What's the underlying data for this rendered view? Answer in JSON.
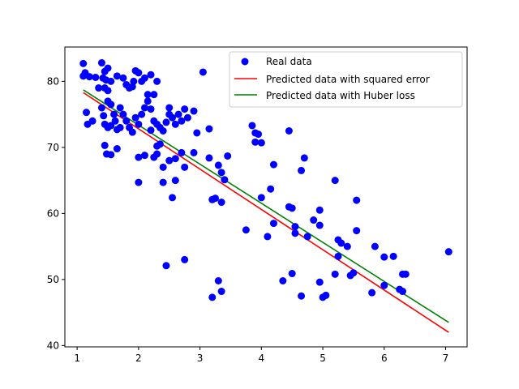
{
  "chart_data": {
    "type": "scatter",
    "title": "",
    "xlabel": "",
    "ylabel": "",
    "xlim": [
      0.8,
      7.35
    ],
    "ylim": [
      39.8,
      85.2
    ],
    "xticks": [
      1,
      2,
      3,
      4,
      5,
      6,
      7
    ],
    "yticks": [
      40,
      50,
      60,
      70,
      80
    ],
    "grid": false,
    "legend_position": "top-right",
    "series": [
      {
        "name": "Real data",
        "kind": "scatter",
        "color": "#0000ff",
        "points": [
          [
            1.1,
            82.7
          ],
          [
            1.13,
            81.3
          ],
          [
            1.1,
            80.8
          ],
          [
            1.2,
            80.7
          ],
          [
            1.3,
            80.6
          ],
          [
            1.4,
            82.8
          ],
          [
            1.45,
            81.5
          ],
          [
            1.5,
            82.0
          ],
          [
            1.42,
            80.5
          ],
          [
            1.47,
            80.2
          ],
          [
            1.45,
            79.0
          ],
          [
            1.5,
            78.6
          ],
          [
            1.35,
            79.0
          ],
          [
            1.65,
            80.8
          ],
          [
            1.55,
            80.0
          ],
          [
            1.75,
            80.5
          ],
          [
            1.8,
            79.5
          ],
          [
            1.85,
            79.0
          ],
          [
            1.9,
            79.2
          ],
          [
            1.95,
            81.6
          ],
          [
            2.0,
            81.3
          ],
          [
            1.92,
            80.0
          ],
          [
            2.05,
            80.0
          ],
          [
            2.1,
            80.5
          ],
          [
            2.2,
            81.0
          ],
          [
            2.3,
            80.0
          ],
          [
            2.15,
            78.0
          ],
          [
            2.25,
            78.0
          ],
          [
            3.05,
            81.4
          ],
          [
            1.15,
            75.3
          ],
          [
            1.17,
            73.5
          ],
          [
            1.25,
            74.0
          ],
          [
            1.4,
            76.0
          ],
          [
            1.43,
            74.8
          ],
          [
            1.45,
            73.5
          ],
          [
            1.5,
            73.0
          ],
          [
            1.5,
            77.0
          ],
          [
            1.55,
            76.5
          ],
          [
            1.6,
            75.0
          ],
          [
            1.62,
            74.0
          ],
          [
            1.65,
            72.7
          ],
          [
            1.55,
            73.3
          ],
          [
            1.7,
            76.0
          ],
          [
            1.75,
            75.0
          ],
          [
            1.8,
            74.0
          ],
          [
            1.85,
            73.0
          ],
          [
            1.9,
            72.3
          ],
          [
            1.95,
            74.5
          ],
          [
            2.0,
            73.5
          ],
          [
            2.05,
            75.0
          ],
          [
            2.1,
            76.0
          ],
          [
            2.15,
            77.0
          ],
          [
            2.2,
            75.8
          ],
          [
            2.25,
            74.0
          ],
          [
            2.3,
            73.5
          ],
          [
            2.35,
            73.0
          ],
          [
            2.4,
            72.5
          ],
          [
            2.45,
            73.8
          ],
          [
            2.5,
            75.0
          ],
          [
            2.55,
            74.5
          ],
          [
            2.6,
            73.5
          ],
          [
            2.65,
            75.0
          ],
          [
            2.7,
            74.0
          ],
          [
            2.75,
            75.8
          ],
          [
            2.8,
            74.5
          ],
          [
            2.9,
            75.5
          ],
          [
            1.7,
            73.0
          ],
          [
            2.5,
            76.0
          ],
          [
            2.2,
            72.6
          ],
          [
            1.45,
            70.3
          ],
          [
            1.48,
            69.0
          ],
          [
            1.55,
            68.9
          ],
          [
            1.65,
            69.8
          ],
          [
            2.0,
            68.5
          ],
          [
            2.1,
            68.8
          ],
          [
            2.25,
            68.5
          ],
          [
            2.3,
            69.0
          ],
          [
            2.35,
            70.5
          ],
          [
            2.4,
            67.0
          ],
          [
            2.5,
            68.0
          ],
          [
            2.6,
            68.3
          ],
          [
            2.7,
            69.2
          ],
          [
            2.75,
            67.0
          ],
          [
            2.9,
            69.2
          ],
          [
            2.3,
            70.2
          ],
          [
            2.0,
            64.7
          ],
          [
            2.4,
            64.7
          ],
          [
            2.6,
            65.0
          ],
          [
            2.55,
            62.4
          ],
          [
            2.95,
            72.2
          ],
          [
            3.15,
            72.8
          ],
          [
            3.15,
            68.4
          ],
          [
            3.3,
            67.3
          ],
          [
            3.35,
            66.2
          ],
          [
            3.4,
            65.1
          ],
          [
            3.45,
            68.7
          ],
          [
            3.2,
            62.1
          ],
          [
            3.25,
            62.3
          ],
          [
            3.35,
            61.7
          ],
          [
            3.85,
            73.3
          ],
          [
            3.9,
            72.2
          ],
          [
            3.95,
            72.0
          ],
          [
            3.9,
            70.8
          ],
          [
            4.0,
            70.7
          ],
          [
            4.45,
            72.5
          ],
          [
            4.7,
            68.4
          ],
          [
            4.65,
            66.5
          ],
          [
            4.2,
            67.4
          ],
          [
            4.0,
            62.4
          ],
          [
            4.15,
            63.7
          ],
          [
            4.45,
            61.0
          ],
          [
            4.5,
            60.8
          ],
          [
            3.75,
            57.5
          ],
          [
            4.1,
            56.5
          ],
          [
            4.2,
            58.5
          ],
          [
            4.55,
            58.0
          ],
          [
            4.55,
            57.0
          ],
          [
            4.75,
            56.5
          ],
          [
            4.85,
            59.0
          ],
          [
            4.95,
            58.2
          ],
          [
            4.95,
            60.5
          ],
          [
            5.2,
            65.0
          ],
          [
            5.55,
            62.0
          ],
          [
            5.55,
            57.4
          ],
          [
            5.25,
            56.0
          ],
          [
            5.3,
            55.5
          ],
          [
            5.4,
            55.0
          ],
          [
            5.25,
            53.5
          ],
          [
            5.5,
            51.0
          ],
          [
            5.45,
            50.6
          ],
          [
            5.2,
            50.8
          ],
          [
            5.85,
            55.0
          ],
          [
            6.0,
            53.4
          ],
          [
            6.15,
            53.5
          ],
          [
            6.3,
            50.8
          ],
          [
            6.35,
            50.8
          ],
          [
            6.25,
            48.5
          ],
          [
            6.3,
            48.2
          ],
          [
            6.0,
            49.1
          ],
          [
            5.8,
            48.0
          ],
          [
            4.35,
            49.8
          ],
          [
            4.5,
            50.9
          ],
          [
            4.65,
            47.5
          ],
          [
            4.95,
            49.6
          ],
          [
            5.0,
            47.3
          ],
          [
            5.05,
            47.6
          ],
          [
            3.3,
            49.8
          ],
          [
            3.35,
            48.2
          ],
          [
            3.2,
            47.3
          ],
          [
            2.45,
            52.1
          ],
          [
            2.75,
            53.0
          ],
          [
            7.05,
            54.2
          ]
        ]
      },
      {
        "name": "Predicted data with squared error",
        "kind": "line",
        "color": "#ff0000",
        "x": [
          1.1,
          7.05
        ],
        "y": [
          78.3,
          42.0
        ]
      },
      {
        "name": "Predicted data with Huber loss",
        "kind": "line",
        "color": "#008000",
        "x": [
          1.1,
          7.05
        ],
        "y": [
          78.7,
          43.5
        ]
      }
    ]
  }
}
